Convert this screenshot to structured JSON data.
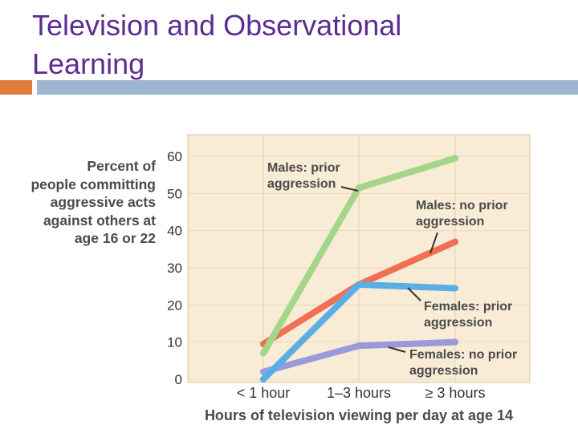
{
  "slide": {
    "title_line1": "Television and Observational",
    "title_line2": "Learning"
  },
  "colors": {
    "title": "#5b2c91",
    "accent_orange": "#e07b3c",
    "accent_blue": "#9fb6cf",
    "plot_bg": "#f9ecd6"
  },
  "chart_data": {
    "type": "line",
    "title": "",
    "categories": [
      "< 1 hour",
      "1–3 hours",
      "≥ 3 hours"
    ],
    "ylabel_lines": [
      "Percent of",
      "people committing",
      "aggressive acts",
      "against others at",
      "age 16 or 22"
    ],
    "xlabel": "Hours of television viewing per day at age 14",
    "ylim": [
      0,
      60
    ],
    "yticks": [
      0,
      10,
      20,
      30,
      40,
      50,
      60
    ],
    "grid": true,
    "series": [
      {
        "name": "Males: prior aggression",
        "label_lines": [
          "Males: prior",
          "aggression"
        ],
        "color": "#a3d68a",
        "values": [
          7,
          51.5,
          59.5
        ]
      },
      {
        "name": "Males: no prior aggression",
        "label_lines": [
          "Males: no prior",
          "aggression"
        ],
        "color": "#f07055",
        "values": [
          9.5,
          25.5,
          37
        ]
      },
      {
        "name": "Females: prior aggression",
        "label_lines": [
          "Females: prior",
          "aggression"
        ],
        "color": "#5aaee6",
        "values": [
          0,
          25.5,
          24.5
        ]
      },
      {
        "name": "Females: no prior aggression",
        "label_lines": [
          "Females: no prior",
          "aggression"
        ],
        "color": "#9a9ada",
        "values": [
          2,
          9,
          10
        ]
      }
    ]
  }
}
